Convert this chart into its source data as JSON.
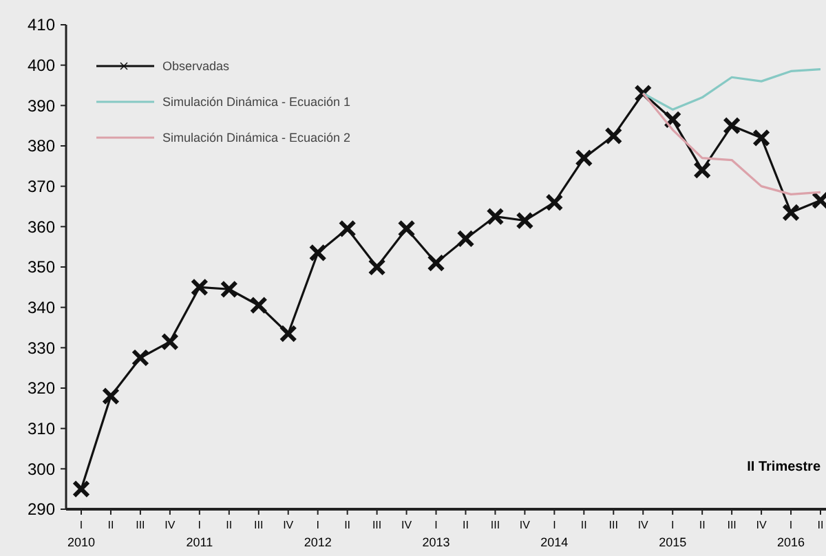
{
  "chart_data": {
    "type": "line",
    "categories": [
      "I 2010",
      "II",
      "III",
      "IV",
      "I 2011",
      "II",
      "III",
      "IV",
      "I 2012",
      "II",
      "III",
      "IV",
      "I 2013",
      "II",
      "III",
      "IV",
      "I 2014",
      "II",
      "III",
      "IV",
      "I 2015",
      "II",
      "III",
      "IV",
      "I 2016",
      "II"
    ],
    "series": [
      {
        "name": "Observadas",
        "color": "#111111",
        "marker": "cross",
        "values": [
          295,
          318,
          327.5,
          331.5,
          345,
          344.5,
          340.5,
          333.5,
          353.5,
          359.5,
          350,
          359.5,
          351,
          357,
          362.5,
          361.5,
          366,
          377,
          382.5,
          393,
          386.5,
          374,
          385,
          382,
          363.5,
          366.5
        ]
      },
      {
        "name": "Simulación Dinámica - Ecuación 1",
        "color": "#86c9c4",
        "marker": "none",
        "values": [
          null,
          null,
          null,
          null,
          null,
          null,
          null,
          null,
          null,
          null,
          null,
          null,
          null,
          null,
          null,
          null,
          null,
          null,
          null,
          393,
          389,
          392,
          397,
          396,
          398.5,
          399
        ]
      },
      {
        "name": "Simulación Dinámica - Ecuación 2",
        "color": "#dca2aa",
        "marker": "none",
        "values": [
          null,
          null,
          null,
          null,
          null,
          null,
          null,
          null,
          null,
          null,
          null,
          null,
          null,
          null,
          null,
          null,
          null,
          null,
          null,
          393,
          384,
          377,
          376.5,
          370,
          368,
          368.5
        ]
      }
    ],
    "ylim": [
      290,
      410
    ],
    "yticks": [
      290,
      300,
      310,
      320,
      330,
      340,
      350,
      360,
      370,
      380,
      390,
      400,
      410
    ],
    "legend": "top left",
    "grid": false,
    "annotations": [
      "II Trimestre"
    ]
  }
}
